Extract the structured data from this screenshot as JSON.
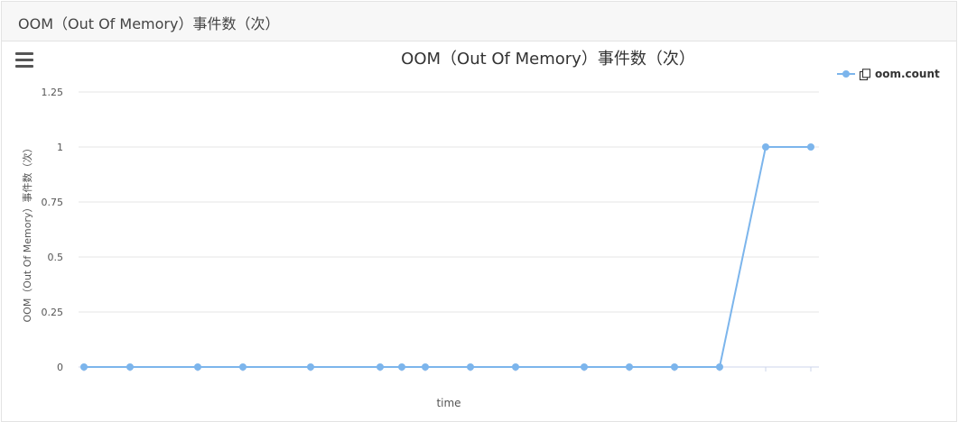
{
  "panel": {
    "header_title": "OOM（Out Of Memory）事件数（次）"
  },
  "icons": {
    "menu": "hamburger-menu-icon",
    "legend": "copy-icon"
  },
  "colors": {
    "series": "#7cb5ec",
    "grid": "#e6e6e6",
    "axis": "#ccd6eb",
    "text": "#333333"
  },
  "chart_data": {
    "type": "line",
    "title": "OOM（Out Of Memory）事件数（次）",
    "xlabel": "time",
    "ylabel": "OOM（Out Of Memory）事件数（次）",
    "ylim": [
      0,
      1.25
    ],
    "yticks": [
      "0",
      "0.25",
      "0.5",
      "0.75",
      "1",
      "1.25"
    ],
    "legend_position": "top-right",
    "grid": true,
    "series": [
      {
        "name": "oom.count",
        "values": [
          0,
          0,
          0,
          0,
          0,
          0,
          0,
          0,
          0,
          0,
          0,
          0,
          0,
          0,
          1,
          1
        ]
      }
    ]
  }
}
